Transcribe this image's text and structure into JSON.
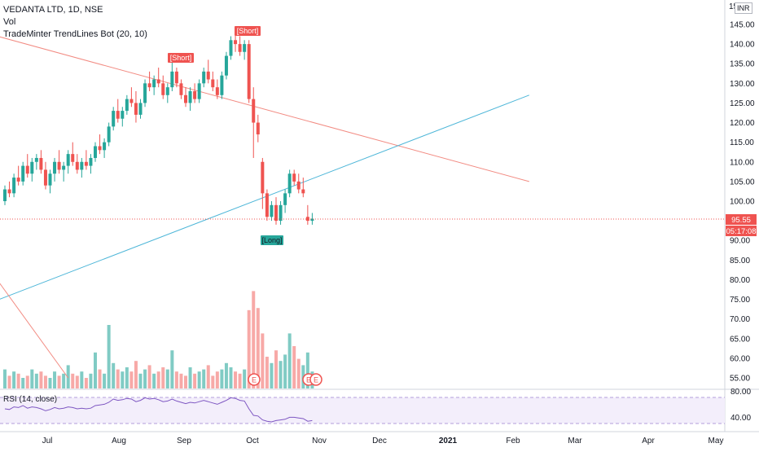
{
  "header": {
    "symbol_line": "VEDANTA LTD, 1D, NSE",
    "vol_label": "Vol",
    "indicator_label": "TradeMinter TrendLines Bot (20, 10)",
    "currency": "INR"
  },
  "rsi": {
    "label": "RSI (14, close)",
    "ticks": [
      "80.00",
      "40.00"
    ]
  },
  "price_axis": {
    "top_partial": "15",
    "ticks": [
      "145.00",
      "140.00",
      "135.00",
      "130.00",
      "125.00",
      "120.00",
      "115.00",
      "110.00",
      "105.00",
      "100.00",
      "90.00",
      "85.00",
      "80.00",
      "75.00",
      "70.00",
      "65.00",
      "60.00",
      "55.00"
    ],
    "last_price": "95.55",
    "countdown": "05:17:08"
  },
  "time_axis": {
    "labels": [
      "Jul",
      "Aug",
      "Sep",
      "Oct",
      "Nov",
      "Dec",
      "2021",
      "Feb",
      "Mar",
      "Apr",
      "May"
    ]
  },
  "signals": {
    "short_1": "[Short]",
    "short_2": "[Short]",
    "long_1": "[Long]",
    "earnings": "E"
  },
  "colors": {
    "up": "#26a69a",
    "down": "#ef5350",
    "vol_up": "#80cbc4",
    "vol_down": "#f7a9a7",
    "trend_down": "#f28b82",
    "trend_up": "#4db6d8",
    "rsi_line": "#7e57c2",
    "rsi_band": "#ede7f6"
  },
  "chart_data": {
    "type": "candlestick",
    "x_unit": "trading day index",
    "y_unit": "INR",
    "ylim": [
      53,
      150
    ],
    "candles": [
      [
        0,
        100,
        104,
        99,
        103
      ],
      [
        1,
        103,
        105,
        101,
        102
      ],
      [
        2,
        102,
        107,
        101,
        106
      ],
      [
        3,
        106,
        109,
        104,
        105
      ],
      [
        4,
        105,
        110,
        104,
        109
      ],
      [
        5,
        109,
        112,
        106,
        107
      ],
      [
        6,
        107,
        111,
        105,
        110
      ],
      [
        7,
        110,
        112,
        108,
        111
      ],
      [
        8,
        111,
        113,
        107,
        108
      ],
      [
        9,
        108,
        110,
        103,
        104
      ],
      [
        10,
        104,
        108,
        102,
        107
      ],
      [
        11,
        107,
        111,
        105,
        110
      ],
      [
        12,
        110,
        113,
        107,
        108
      ],
      [
        13,
        108,
        110,
        105,
        109
      ],
      [
        14,
        109,
        113,
        107,
        112
      ],
      [
        15,
        112,
        115,
        109,
        110
      ],
      [
        16,
        110,
        112,
        107,
        108
      ],
      [
        17,
        108,
        111,
        106,
        110
      ],
      [
        18,
        110,
        113,
        108,
        109
      ],
      [
        19,
        109,
        112,
        107,
        111
      ],
      [
        20,
        111,
        115,
        110,
        114
      ],
      [
        21,
        114,
        117,
        112,
        113
      ],
      [
        22,
        113,
        116,
        111,
        115
      ],
      [
        23,
        115,
        120,
        114,
        119
      ],
      [
        24,
        119,
        124,
        118,
        123
      ],
      [
        25,
        123,
        126,
        120,
        121
      ],
      [
        26,
        121,
        124,
        119,
        123
      ],
      [
        27,
        123,
        127,
        122,
        126
      ],
      [
        28,
        126,
        129,
        124,
        125
      ],
      [
        29,
        125,
        128,
        120,
        122
      ],
      [
        30,
        122,
        126,
        121,
        125
      ],
      [
        31,
        125,
        131,
        124,
        130
      ],
      [
        32,
        130,
        133,
        128,
        129
      ],
      [
        33,
        129,
        132,
        127,
        131
      ],
      [
        34,
        131,
        134,
        129,
        130
      ],
      [
        35,
        130,
        132,
        126,
        127
      ],
      [
        36,
        127,
        130,
        125,
        129
      ],
      [
        37,
        129,
        136,
        128,
        133
      ],
      [
        38,
        133,
        134,
        129,
        130
      ],
      [
        39,
        130,
        131,
        126,
        127
      ],
      [
        40,
        127,
        129,
        124,
        125
      ],
      [
        41,
        125,
        129,
        123,
        128
      ],
      [
        42,
        128,
        130,
        125,
        126
      ],
      [
        43,
        126,
        131,
        125,
        130
      ],
      [
        44,
        130,
        134,
        129,
        133
      ],
      [
        45,
        133,
        136,
        130,
        131
      ],
      [
        46,
        131,
        133,
        128,
        129
      ],
      [
        47,
        129,
        131,
        126,
        127
      ],
      [
        48,
        127,
        133,
        126,
        132
      ],
      [
        49,
        132,
        138,
        131,
        137
      ],
      [
        50,
        137,
        142,
        136,
        141
      ],
      [
        51,
        141,
        143,
        138,
        140
      ],
      [
        52,
        140,
        142,
        137,
        138
      ],
      [
        53,
        138,
        141,
        136,
        140
      ],
      [
        54,
        140,
        141,
        125,
        126
      ],
      [
        55,
        126,
        129,
        111,
        120
      ],
      [
        56,
        120,
        122,
        115,
        117
      ],
      [
        57,
        110,
        111,
        98,
        102
      ],
      [
        58,
        102,
        103,
        95,
        96
      ],
      [
        59,
        96,
        100,
        95,
        99
      ],
      [
        60,
        99,
        101,
        94,
        95
      ],
      [
        61,
        95,
        100,
        94,
        99
      ],
      [
        62,
        99,
        103,
        97,
        102
      ],
      [
        63,
        102,
        108,
        101,
        107
      ],
      [
        64,
        107,
        108,
        104,
        105
      ],
      [
        65,
        105,
        107,
        102,
        103
      ],
      [
        66,
        103,
        106,
        101,
        102
      ],
      [
        67,
        96,
        99,
        94,
        95
      ],
      [
        68,
        95,
        97,
        94,
        95.55
      ]
    ],
    "volume": [
      [
        0,
        9,
        "up"
      ],
      [
        1,
        6,
        "down"
      ],
      [
        2,
        8,
        "up"
      ],
      [
        3,
        7,
        "down"
      ],
      [
        4,
        5,
        "up"
      ],
      [
        5,
        6,
        "down"
      ],
      [
        6,
        9,
        "up"
      ],
      [
        7,
        7,
        "up"
      ],
      [
        8,
        8,
        "down"
      ],
      [
        9,
        6,
        "down"
      ],
      [
        10,
        5,
        "up"
      ],
      [
        11,
        8,
        "up"
      ],
      [
        12,
        6,
        "down"
      ],
      [
        13,
        7,
        "up"
      ],
      [
        14,
        11,
        "up"
      ],
      [
        15,
        7,
        "down"
      ],
      [
        16,
        6,
        "down"
      ],
      [
        17,
        8,
        "up"
      ],
      [
        18,
        5,
        "down"
      ],
      [
        19,
        7,
        "up"
      ],
      [
        20,
        17,
        "up"
      ],
      [
        21,
        9,
        "down"
      ],
      [
        22,
        7,
        "up"
      ],
      [
        23,
        30,
        "up"
      ],
      [
        24,
        12,
        "up"
      ],
      [
        25,
        9,
        "down"
      ],
      [
        26,
        8,
        "up"
      ],
      [
        27,
        10,
        "up"
      ],
      [
        28,
        8,
        "down"
      ],
      [
        29,
        13,
        "down"
      ],
      [
        30,
        7,
        "up"
      ],
      [
        31,
        9,
        "up"
      ],
      [
        32,
        11,
        "down"
      ],
      [
        33,
        7,
        "up"
      ],
      [
        34,
        8,
        "down"
      ],
      [
        35,
        10,
        "down"
      ],
      [
        36,
        9,
        "up"
      ],
      [
        37,
        18,
        "up"
      ],
      [
        38,
        8,
        "down"
      ],
      [
        39,
        7,
        "down"
      ],
      [
        40,
        6,
        "down"
      ],
      [
        41,
        10,
        "up"
      ],
      [
        42,
        7,
        "down"
      ],
      [
        43,
        8,
        "up"
      ],
      [
        44,
        9,
        "up"
      ],
      [
        45,
        11,
        "down"
      ],
      [
        46,
        6,
        "down"
      ],
      [
        47,
        8,
        "down"
      ],
      [
        48,
        9,
        "up"
      ],
      [
        49,
        12,
        "up"
      ],
      [
        50,
        10,
        "up"
      ],
      [
        51,
        8,
        "down"
      ],
      [
        52,
        7,
        "down"
      ],
      [
        53,
        9,
        "up"
      ],
      [
        54,
        37,
        "down"
      ],
      [
        55,
        46,
        "down"
      ],
      [
        56,
        38,
        "down"
      ],
      [
        57,
        26,
        "down"
      ],
      [
        58,
        15,
        "down"
      ],
      [
        59,
        12,
        "up"
      ],
      [
        60,
        18,
        "down"
      ],
      [
        61,
        13,
        "up"
      ],
      [
        62,
        16,
        "up"
      ],
      [
        63,
        26,
        "up"
      ],
      [
        64,
        20,
        "down"
      ],
      [
        65,
        14,
        "down"
      ],
      [
        66,
        11,
        "up"
      ],
      [
        67,
        17,
        "up"
      ],
      [
        68,
        8,
        "up"
      ]
    ],
    "rsi_values": [
      55,
      54,
      58,
      57,
      60,
      56,
      58,
      57,
      55,
      52,
      54,
      57,
      55,
      56,
      58,
      57,
      55,
      56,
      55,
      56,
      60,
      61,
      62,
      65,
      70,
      68,
      69,
      71,
      70,
      66,
      68,
      72,
      70,
      71,
      69,
      66,
      67,
      70,
      67,
      65,
      63,
      65,
      64,
      66,
      68,
      66,
      64,
      62,
      65,
      68,
      72,
      71,
      68,
      67,
      55,
      45,
      44,
      38,
      36,
      35,
      37,
      38,
      39,
      42,
      42,
      41,
      40,
      36,
      37
    ],
    "rsi_range": [
      20,
      85
    ],
    "trendlines": [
      {
        "name": "resistance",
        "from": [
          -8,
          144
        ],
        "to": [
          116,
          105
        ]
      },
      {
        "name": "support",
        "from": [
          -8,
          72
        ],
        "to": [
          116,
          127
        ]
      },
      {
        "name": "old-resistance",
        "from": [
          -8,
          90
        ],
        "to": [
          14,
          55
        ]
      }
    ]
  }
}
